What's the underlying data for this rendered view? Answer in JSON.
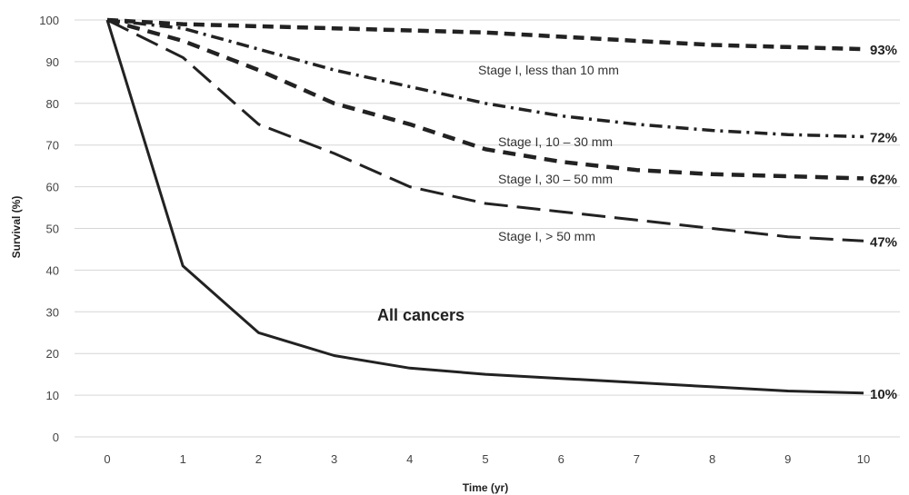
{
  "chart_data": {
    "type": "line",
    "xlabel": "Time (yr)",
    "ylabel": "Survival (%)",
    "x": [
      0,
      1,
      2,
      3,
      4,
      5,
      6,
      7,
      8,
      9,
      10
    ],
    "xlim": [
      0,
      10
    ],
    "ylim": [
      0,
      100
    ],
    "yticks": [
      0,
      10,
      20,
      30,
      40,
      50,
      60,
      70,
      80,
      90,
      100
    ],
    "grid": "horizontal",
    "series": [
      {
        "name": "Stage I, less than 10 mm",
        "style": "dashed",
        "end_label": "93%",
        "values": [
          100,
          99,
          98.5,
          98,
          97.5,
          97,
          96,
          95,
          94,
          93.5,
          93
        ]
      },
      {
        "name": "Stage I, 10 – 30 mm",
        "style": "dash-dot",
        "end_label": "72%",
        "values": [
          100,
          98,
          93,
          88,
          84,
          80,
          77,
          75,
          73.5,
          72.5,
          72
        ]
      },
      {
        "name": "Stage I, 30 – 50 mm",
        "style": "dashed-heavy",
        "end_label": "62%",
        "values": [
          100,
          95,
          88,
          80,
          75,
          69,
          66,
          64,
          63,
          62.5,
          62
        ]
      },
      {
        "name": "Stage I, > 50 mm",
        "style": "long-dash",
        "end_label": "47%",
        "values": [
          100,
          91,
          75,
          68,
          60,
          56,
          54,
          52,
          50,
          48,
          47
        ]
      },
      {
        "name": "All cancers",
        "style": "solid",
        "end_label": "10%",
        "values": [
          100,
          41,
          25,
          19.5,
          16.5,
          15,
          14,
          13,
          12,
          11,
          10.5
        ]
      }
    ],
    "line_color": "#222222"
  }
}
